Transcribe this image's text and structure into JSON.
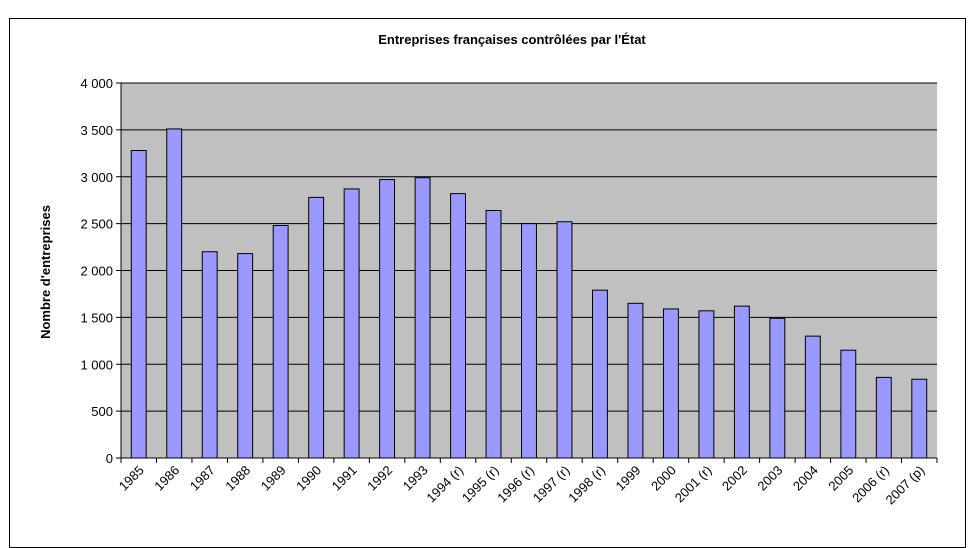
{
  "chart_data": {
    "type": "bar",
    "title": "Entreprises françaises contrôlées par l'État",
    "xlabel": "",
    "ylabel": "Nombre d'entreprises",
    "ylim": [
      0,
      4000
    ],
    "yticks": [
      0,
      500,
      1000,
      1500,
      2000,
      2500,
      3000,
      3500,
      4000
    ],
    "ytick_labels": [
      "0",
      "500",
      "1 000",
      "1 500",
      "2 000",
      "2 500",
      "3 000",
      "3 500",
      "4 000"
    ],
    "grid": true,
    "legend": "none",
    "categories": [
      "1985",
      "1986",
      "1987",
      "1988",
      "1989",
      "1990",
      "1991",
      "1992",
      "1993",
      "1994 (r)",
      "1995 (r)",
      "1996 (r)",
      "1997 (r)",
      "1998 (r)",
      "1999",
      "2000",
      "2001 (r)",
      "2002",
      "2003",
      "2004",
      "2005",
      "2006 (r)",
      "2007 (p)"
    ],
    "values": [
      3280,
      3510,
      2200,
      2180,
      2480,
      2780,
      2870,
      2970,
      2990,
      2820,
      2640,
      2500,
      2520,
      1790,
      1650,
      1590,
      1570,
      1620,
      1490,
      1300,
      1150,
      860,
      840
    ],
    "colors": {
      "bar_fill": "#9999FF",
      "bar_stroke": "#000000",
      "plot_bg": "#C0C0C0",
      "grid": "#000000"
    }
  }
}
